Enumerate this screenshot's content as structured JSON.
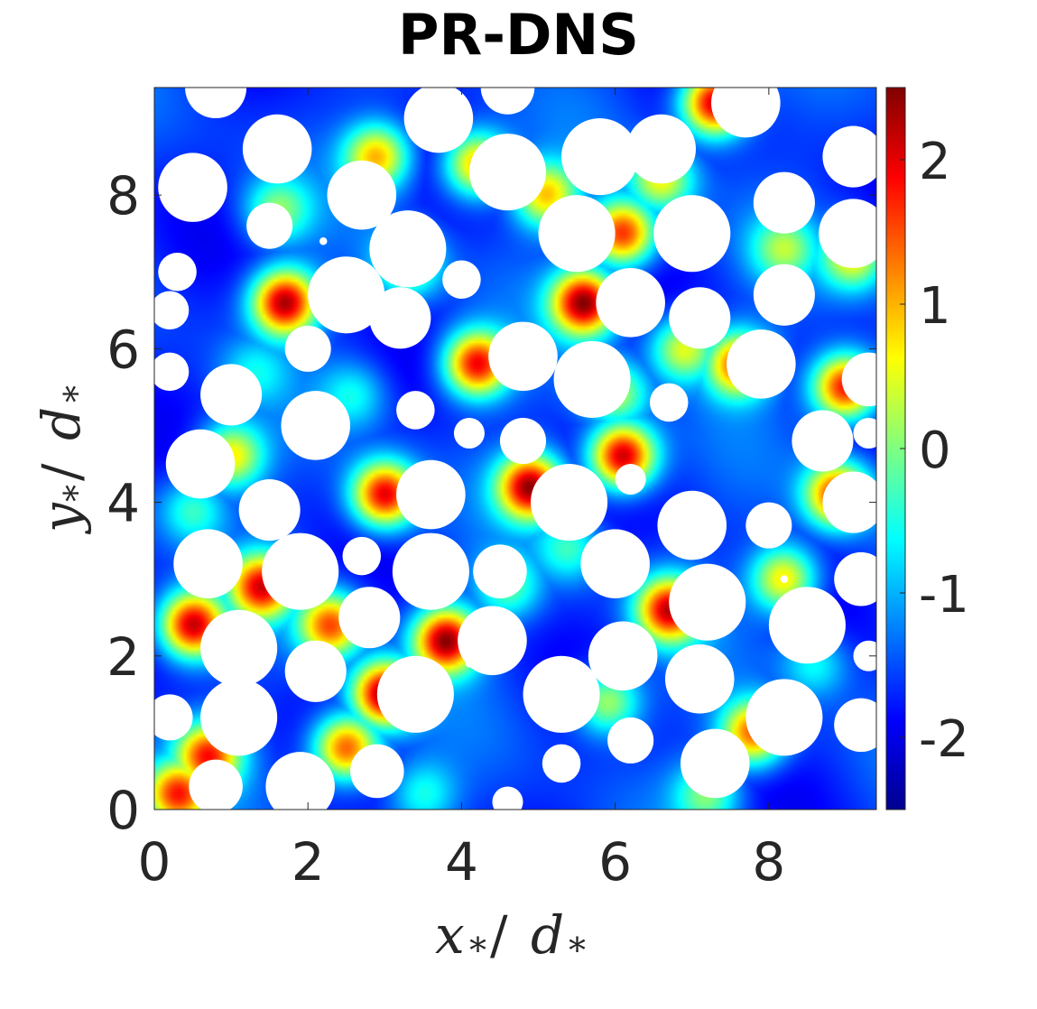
{
  "chart_data": {
    "type": "heatmap",
    "title": "PR-DNS",
    "xlabel_main": "x",
    "xlabel_sub": "*",
    "xlabel_den": "d",
    "ylabel_main": "y",
    "ylabel_sub": "*",
    "ylabel_den": "d",
    "xlim": [
      0,
      9.4
    ],
    "ylim": [
      0,
      9.4
    ],
    "xticks": [
      0,
      2,
      4,
      6,
      8
    ],
    "yticks": [
      0,
      2,
      4,
      6,
      8
    ],
    "colorbar": {
      "range": [
        -2.5,
        2.5
      ],
      "ticks": [
        2,
        1,
        0,
        -1,
        -2
      ],
      "colormap": "jet",
      "colors": [
        "#00008f",
        "#0000ff",
        "#00ffff",
        "#ffff00",
        "#ff0000",
        "#800000"
      ]
    },
    "background_level": -1.6,
    "hotspots": [
      {
        "x": 1.7,
        "y": 6.6,
        "v": 2.3
      },
      {
        "x": 0.5,
        "y": 2.4,
        "v": 2.2
      },
      {
        "x": 3.8,
        "y": 2.2,
        "v": 2.4
      },
      {
        "x": 3.0,
        "y": 1.5,
        "v": 2.4
      },
      {
        "x": 4.9,
        "y": 4.2,
        "v": 2.3
      },
      {
        "x": 5.6,
        "y": 6.6,
        "v": 2.4
      },
      {
        "x": 6.1,
        "y": 7.5,
        "v": 1.8
      },
      {
        "x": 7.3,
        "y": 9.2,
        "v": 2.4
      },
      {
        "x": 6.1,
        "y": 4.6,
        "v": 2.4
      },
      {
        "x": 3.0,
        "y": 4.1,
        "v": 2.1
      },
      {
        "x": 4.2,
        "y": 5.8,
        "v": 2.0
      },
      {
        "x": 7.6,
        "y": 5.8,
        "v": 1.5
      },
      {
        "x": 9.0,
        "y": 5.5,
        "v": 2.1
      },
      {
        "x": 6.7,
        "y": 2.6,
        "v": 2.0
      },
      {
        "x": 1.4,
        "y": 2.9,
        "v": 1.8
      },
      {
        "x": 2.5,
        "y": 0.8,
        "v": 1.7
      },
      {
        "x": 0.7,
        "y": 0.7,
        "v": 1.6
      },
      {
        "x": 7.8,
        "y": 1.0,
        "v": 1.5
      },
      {
        "x": 0.3,
        "y": 0.2,
        "v": 1.6
      },
      {
        "x": 4.2,
        "y": 8.4,
        "v": 1.2
      },
      {
        "x": 2.9,
        "y": 8.5,
        "v": 1.0
      },
      {
        "x": 1.0,
        "y": 4.6,
        "v": 0.8
      },
      {
        "x": 5.1,
        "y": 8.0,
        "v": 0.9
      },
      {
        "x": 6.9,
        "y": 6.0,
        "v": 0.6
      },
      {
        "x": 8.2,
        "y": 3.0,
        "v": 0.9
      },
      {
        "x": 8.9,
        "y": 4.1,
        "v": 1.8
      },
      {
        "x": 9.1,
        "y": 7.2,
        "v": 0.7
      },
      {
        "x": 3.3,
        "y": 7.1,
        "v": 0.4
      },
      {
        "x": 6.0,
        "y": 5.4,
        "v": 0.3
      },
      {
        "x": 2.3,
        "y": 2.4,
        "v": 1.5
      },
      {
        "x": 1.6,
        "y": 7.8,
        "v": 0.0
      },
      {
        "x": 6.6,
        "y": 8.2,
        "v": 0.6
      },
      {
        "x": 0.5,
        "y": 3.9,
        "v": -0.3
      },
      {
        "x": 4.6,
        "y": 2.9,
        "v": -0.2
      },
      {
        "x": 5.9,
        "y": 1.4,
        "v": 0.4
      },
      {
        "x": 8.2,
        "y": 7.3,
        "v": 0.0
      },
      {
        "x": 3.5,
        "y": 0.2,
        "v": -0.5
      },
      {
        "x": 7.2,
        "y": 0.2,
        "v": 0.0
      },
      {
        "x": 2.6,
        "y": 5.4,
        "v": -0.6
      },
      {
        "x": 5.4,
        "y": 3.4,
        "v": -0.4
      },
      {
        "x": 1.3,
        "y": 5.7,
        "v": -0.8
      },
      {
        "x": 8.6,
        "y": 1.9,
        "v": -0.5
      }
    ],
    "particles": [
      {
        "x": 0.8,
        "y": 9.4,
        "r": 0.4
      },
      {
        "x": 1.6,
        "y": 8.6,
        "r": 0.45
      },
      {
        "x": 0.5,
        "y": 8.1,
        "r": 0.45
      },
      {
        "x": 1.5,
        "y": 7.6,
        "r": 0.3
      },
      {
        "x": 2.2,
        "y": 7.4,
        "r": 0.05
      },
      {
        "x": 2.7,
        "y": 8.0,
        "r": 0.45
      },
      {
        "x": 3.7,
        "y": 9.0,
        "r": 0.45
      },
      {
        "x": 3.3,
        "y": 7.3,
        "r": 0.5
      },
      {
        "x": 2.5,
        "y": 6.7,
        "r": 0.5
      },
      {
        "x": 4.0,
        "y": 6.9,
        "r": 0.25
      },
      {
        "x": 4.6,
        "y": 8.3,
        "r": 0.5
      },
      {
        "x": 4.6,
        "y": 9.4,
        "r": 0.35
      },
      {
        "x": 5.5,
        "y": 7.5,
        "r": 0.5
      },
      {
        "x": 5.8,
        "y": 8.5,
        "r": 0.5
      },
      {
        "x": 6.6,
        "y": 8.6,
        "r": 0.45
      },
      {
        "x": 7.7,
        "y": 9.2,
        "r": 0.45
      },
      {
        "x": 7.0,
        "y": 7.5,
        "r": 0.5
      },
      {
        "x": 8.2,
        "y": 7.9,
        "r": 0.4
      },
      {
        "x": 9.1,
        "y": 8.5,
        "r": 0.4
      },
      {
        "x": 9.1,
        "y": 7.5,
        "r": 0.45
      },
      {
        "x": 8.2,
        "y": 6.7,
        "r": 0.4
      },
      {
        "x": 6.2,
        "y": 6.6,
        "r": 0.45
      },
      {
        "x": 7.1,
        "y": 6.4,
        "r": 0.4
      },
      {
        "x": 3.2,
        "y": 6.4,
        "r": 0.4
      },
      {
        "x": 2.0,
        "y": 6.0,
        "r": 0.3
      },
      {
        "x": 0.3,
        "y": 7.0,
        "r": 0.25
      },
      {
        "x": 0.2,
        "y": 6.5,
        "r": 0.25
      },
      {
        "x": 0.2,
        "y": 5.7,
        "r": 0.25
      },
      {
        "x": 1.0,
        "y": 5.4,
        "r": 0.4
      },
      {
        "x": 2.1,
        "y": 5.0,
        "r": 0.45
      },
      {
        "x": 3.4,
        "y": 5.2,
        "r": 0.25
      },
      {
        "x": 4.1,
        "y": 4.9,
        "r": 0.2
      },
      {
        "x": 4.8,
        "y": 4.8,
        "r": 0.3
      },
      {
        "x": 4.8,
        "y": 5.9,
        "r": 0.45
      },
      {
        "x": 5.7,
        "y": 5.6,
        "r": 0.5
      },
      {
        "x": 6.7,
        "y": 5.3,
        "r": 0.25
      },
      {
        "x": 7.9,
        "y": 5.8,
        "r": 0.45
      },
      {
        "x": 9.3,
        "y": 5.6,
        "r": 0.35
      },
      {
        "x": 8.7,
        "y": 4.8,
        "r": 0.4
      },
      {
        "x": 9.3,
        "y": 4.9,
        "r": 0.2
      },
      {
        "x": 0.6,
        "y": 4.5,
        "r": 0.45
      },
      {
        "x": 1.5,
        "y": 3.9,
        "r": 0.4
      },
      {
        "x": 3.6,
        "y": 4.1,
        "r": 0.45
      },
      {
        "x": 5.4,
        "y": 4.0,
        "r": 0.5
      },
      {
        "x": 6.2,
        "y": 4.3,
        "r": 0.2
      },
      {
        "x": 7.0,
        "y": 3.7,
        "r": 0.45
      },
      {
        "x": 8.0,
        "y": 3.7,
        "r": 0.3
      },
      {
        "x": 8.2,
        "y": 3.0,
        "r": 0.05
      },
      {
        "x": 9.1,
        "y": 4.0,
        "r": 0.4
      },
      {
        "x": 9.2,
        "y": 3.0,
        "r": 0.35
      },
      {
        "x": 0.7,
        "y": 3.2,
        "r": 0.45
      },
      {
        "x": 1.9,
        "y": 3.1,
        "r": 0.5
      },
      {
        "x": 2.7,
        "y": 3.3,
        "r": 0.25
      },
      {
        "x": 3.6,
        "y": 3.1,
        "r": 0.5
      },
      {
        "x": 4.5,
        "y": 3.1,
        "r": 0.35
      },
      {
        "x": 6.0,
        "y": 3.2,
        "r": 0.45
      },
      {
        "x": 7.2,
        "y": 2.7,
        "r": 0.5
      },
      {
        "x": 8.5,
        "y": 2.4,
        "r": 0.5
      },
      {
        "x": 9.3,
        "y": 2.0,
        "r": 0.2
      },
      {
        "x": 1.1,
        "y": 2.1,
        "r": 0.5
      },
      {
        "x": 2.8,
        "y": 2.5,
        "r": 0.4
      },
      {
        "x": 4.4,
        "y": 2.2,
        "r": 0.45
      },
      {
        "x": 6.1,
        "y": 2.0,
        "r": 0.45
      },
      {
        "x": 2.1,
        "y": 1.8,
        "r": 0.4
      },
      {
        "x": 3.4,
        "y": 1.5,
        "r": 0.5
      },
      {
        "x": 5.3,
        "y": 1.5,
        "r": 0.5
      },
      {
        "x": 7.1,
        "y": 1.7,
        "r": 0.45
      },
      {
        "x": 8.2,
        "y": 1.2,
        "r": 0.5
      },
      {
        "x": 9.2,
        "y": 1.1,
        "r": 0.35
      },
      {
        "x": 1.1,
        "y": 1.2,
        "r": 0.5
      },
      {
        "x": 0.2,
        "y": 1.2,
        "r": 0.3
      },
      {
        "x": 6.2,
        "y": 0.9,
        "r": 0.3
      },
      {
        "x": 5.3,
        "y": 0.6,
        "r": 0.25
      },
      {
        "x": 7.3,
        "y": 0.6,
        "r": 0.45
      },
      {
        "x": 0.8,
        "y": 0.3,
        "r": 0.35
      },
      {
        "x": 1.9,
        "y": 0.3,
        "r": 0.45
      },
      {
        "x": 2.9,
        "y": 0.5,
        "r": 0.35
      },
      {
        "x": 4.6,
        "y": 0.1,
        "r": 0.2
      },
      {
        "x": 4.1,
        "y": 1.9,
        "r": 0.05
      }
    ]
  }
}
